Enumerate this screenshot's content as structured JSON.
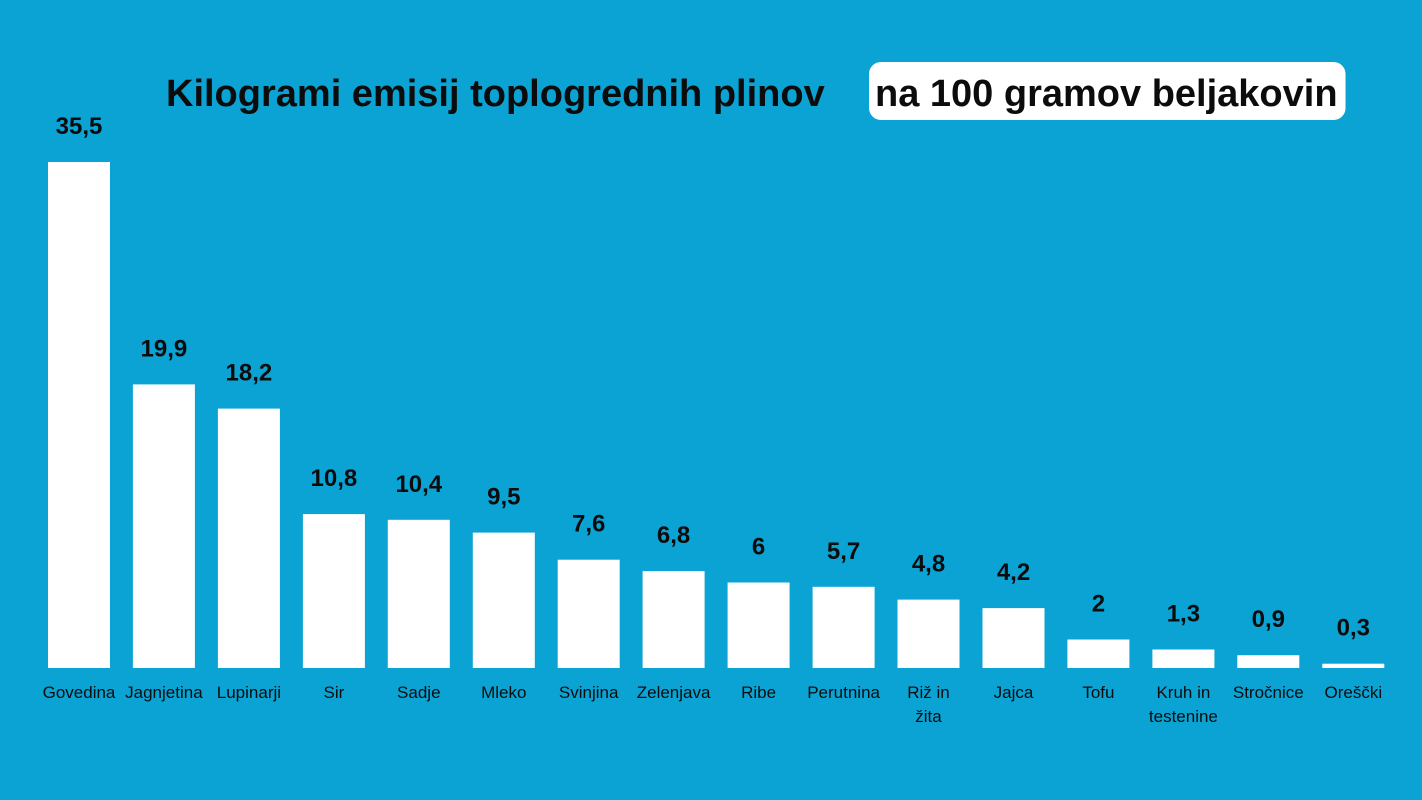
{
  "colors": {
    "background": "#0aa3d3",
    "bar": "#ffffff",
    "text": "#0c0c0c",
    "highlight_box": "#ffffff"
  },
  "chart_data": {
    "type": "bar",
    "title": "Kilogrami emisij toplogrednih plinov",
    "title_highlight": "na 100 gramov beljakovin",
    "categories": [
      [
        "Govedina"
      ],
      [
        "Jagnjetina"
      ],
      [
        "Lupinarji"
      ],
      [
        "Sir"
      ],
      [
        "Sadje"
      ],
      [
        "Mleko"
      ],
      [
        "Svinjina"
      ],
      [
        "Zelenjava"
      ],
      [
        "Ribe"
      ],
      [
        "Perutnina"
      ],
      [
        "Riž in",
        "žita"
      ],
      [
        "Jajca"
      ],
      [
        "Tofu"
      ],
      [
        "Kruh in",
        "testenine"
      ],
      [
        "Stročnice"
      ],
      [
        "Oreščki"
      ]
    ],
    "values": [
      35.5,
      19.9,
      18.2,
      10.8,
      10.4,
      9.5,
      7.6,
      6.8,
      6,
      5.7,
      4.8,
      4.2,
      2,
      1.3,
      0.9,
      0.3
    ],
    "value_labels": [
      "35,5",
      "19,9",
      "18,2",
      "10,8",
      "10,4",
      "9,5",
      "7,6",
      "6,8",
      "6",
      "5,7",
      "4,8",
      "4,2",
      "2",
      "1,3",
      "0,9",
      "0,3"
    ],
    "xlabel": "",
    "ylabel": "",
    "ylim": [
      0,
      35.5
    ],
    "grid": false,
    "legend": "none"
  }
}
